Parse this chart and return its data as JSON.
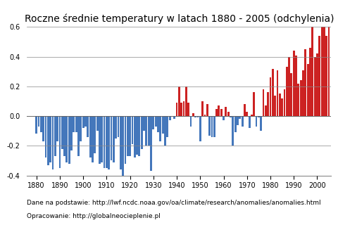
{
  "title": "Roczne średnie temperatury w latach 1880 - 2005 (odchylenia)",
  "footnote1": "Dane na podstawie: http://lwf.ncdc.noaa.gov/oa/climate/research/anomalies/anomalies.html",
  "footnote2": "Opracowanie: http://globalneocieplenie.pl",
  "years": [
    1880,
    1881,
    1882,
    1883,
    1884,
    1885,
    1886,
    1887,
    1888,
    1889,
    1890,
    1891,
    1892,
    1893,
    1894,
    1895,
    1896,
    1897,
    1898,
    1899,
    1900,
    1901,
    1902,
    1903,
    1904,
    1905,
    1906,
    1907,
    1908,
    1909,
    1910,
    1911,
    1912,
    1913,
    1914,
    1915,
    1916,
    1917,
    1918,
    1919,
    1920,
    1921,
    1922,
    1923,
    1924,
    1925,
    1926,
    1927,
    1928,
    1929,
    1930,
    1931,
    1932,
    1933,
    1934,
    1935,
    1936,
    1937,
    1938,
    1939,
    1940,
    1941,
    1942,
    1943,
    1944,
    1945,
    1946,
    1947,
    1948,
    1949,
    1950,
    1951,
    1952,
    1953,
    1954,
    1955,
    1956,
    1957,
    1958,
    1959,
    1960,
    1961,
    1962,
    1963,
    1964,
    1965,
    1966,
    1967,
    1968,
    1969,
    1970,
    1971,
    1972,
    1973,
    1974,
    1975,
    1976,
    1977,
    1978,
    1979,
    1980,
    1981,
    1982,
    1983,
    1984,
    1985,
    1986,
    1987,
    1988,
    1989,
    1990,
    1991,
    1992,
    1993,
    1994,
    1995,
    1996,
    1997,
    1998,
    1999,
    2000,
    2001,
    2002,
    2003,
    2004,
    2005
  ],
  "anomalies": [
    -0.12,
    -0.07,
    -0.11,
    -0.17,
    -0.28,
    -0.33,
    -0.31,
    -0.36,
    -0.27,
    -0.17,
    -0.35,
    -0.22,
    -0.27,
    -0.31,
    -0.32,
    -0.23,
    -0.11,
    -0.11,
    -0.27,
    -0.17,
    -0.08,
    -0.07,
    -0.14,
    -0.28,
    -0.31,
    -0.25,
    -0.1,
    -0.32,
    -0.31,
    -0.35,
    -0.35,
    -0.36,
    -0.3,
    -0.31,
    -0.15,
    -0.14,
    -0.36,
    -0.46,
    -0.32,
    -0.27,
    -0.27,
    -0.19,
    -0.28,
    -0.26,
    -0.27,
    -0.22,
    -0.1,
    -0.2,
    -0.2,
    -0.37,
    -0.09,
    -0.07,
    -0.11,
    -0.17,
    -0.12,
    -0.2,
    -0.14,
    -0.03,
    -0.0,
    -0.02,
    0.09,
    0.2,
    0.09,
    0.1,
    0.2,
    0.09,
    -0.07,
    0.02,
    -0.01,
    -0.01,
    -0.17,
    0.1,
    0.01,
    0.08,
    -0.13,
    -0.14,
    -0.14,
    0.05,
    0.07,
    0.05,
    -0.03,
    0.06,
    0.03,
    -0.01,
    -0.2,
    -0.11,
    -0.06,
    -0.02,
    -0.07,
    0.08,
    0.03,
    -0.08,
    0.01,
    0.16,
    -0.07,
    -0.01,
    -0.1,
    0.18,
    0.07,
    0.16,
    0.26,
    0.32,
    0.14,
    0.31,
    0.15,
    0.12,
    0.18,
    0.33,
    0.4,
    0.29,
    0.44,
    0.41,
    0.22,
    0.24,
    0.31,
    0.45,
    0.35,
    0.46,
    0.63,
    0.4,
    0.42,
    0.54,
    0.63,
    0.62,
    0.54,
    0.68
  ],
  "color_positive": "#cc2222",
  "color_negative": "#4477bb",
  "ylim": [
    -0.4,
    0.6
  ],
  "yticks": [
    -0.4,
    -0.2,
    0.0,
    0.2,
    0.4,
    0.6
  ],
  "xtick_years": [
    1880,
    1890,
    1900,
    1910,
    1920,
    1930,
    1940,
    1950,
    1960,
    1970,
    1980,
    1990,
    2000
  ],
  "xlim": [
    1876,
    2006
  ],
  "background_color": "#ffffff",
  "grid_color": "#888888",
  "title_fontsize": 10,
  "tick_fontsize": 7,
  "footnote_fontsize": 6.5
}
